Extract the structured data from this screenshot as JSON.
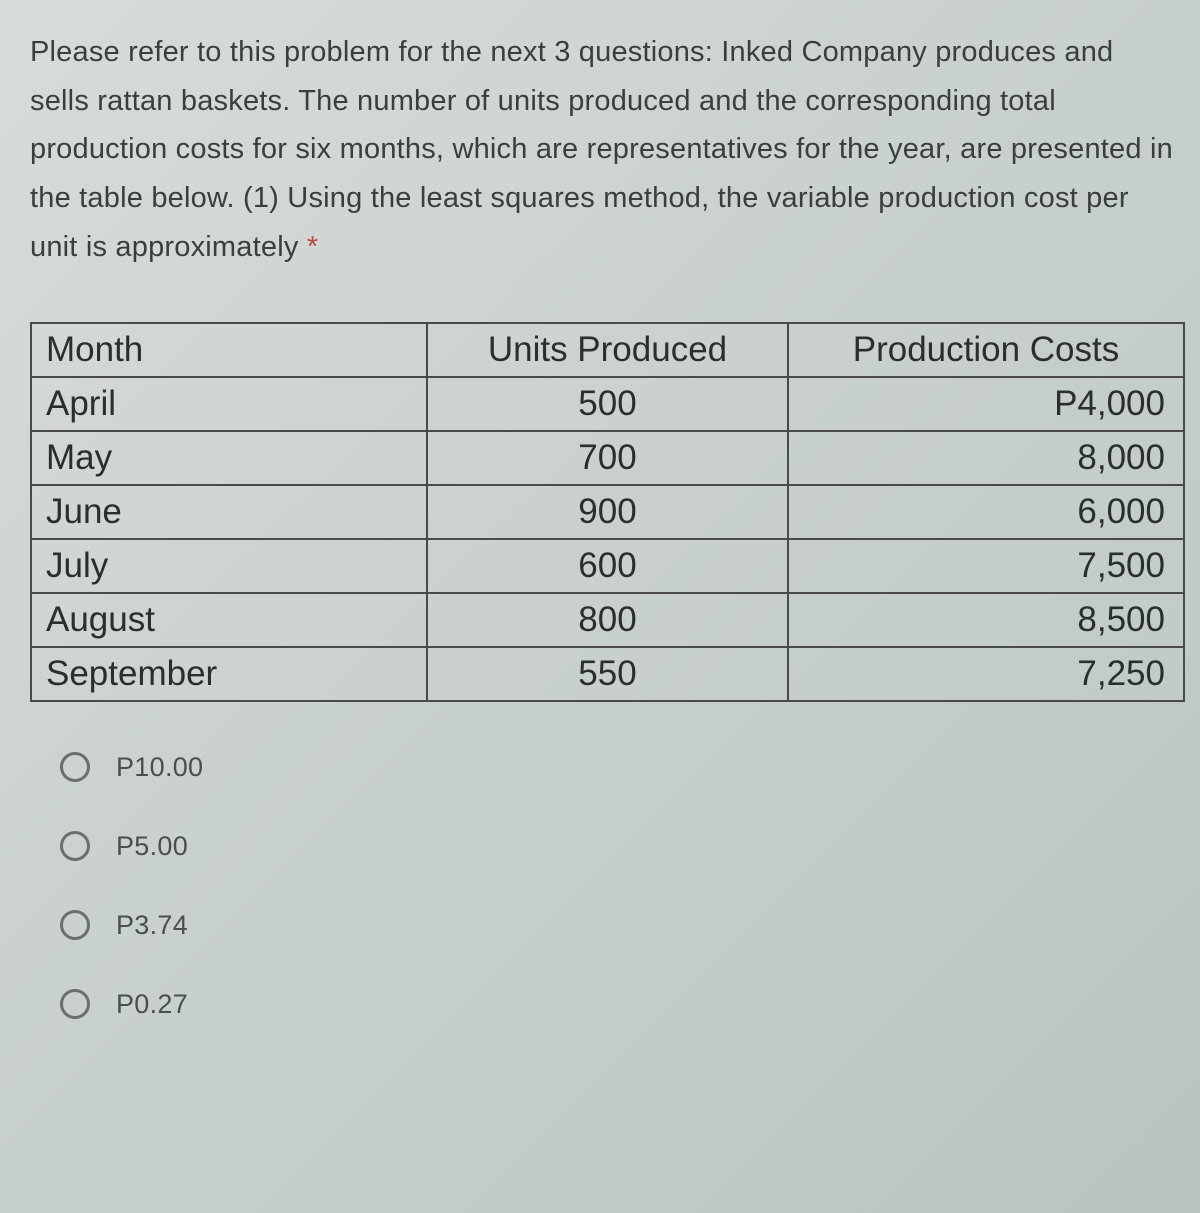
{
  "question": {
    "text": "Please refer to this problem for the next 3 questions: Inked Company produces and sells rattan baskets. The number of units produced and the corresponding total production costs for six months, which are representatives for the year, are presented in the table below. (1) Using the least squares method, the variable production cost per unit is approximately ",
    "required_marker": "*"
  },
  "table": {
    "type": "table",
    "columns": [
      "Month",
      "Units Produced",
      "Production Costs"
    ],
    "rows": [
      [
        "April",
        "500",
        "P4,000"
      ],
      [
        "May",
        "700",
        "8,000"
      ],
      [
        "June",
        "900",
        "6,000"
      ],
      [
        "July",
        "600",
        "7,500"
      ],
      [
        "August",
        "800",
        "8,500"
      ],
      [
        "September",
        "550",
        "7,250"
      ]
    ],
    "border_color": "#4a4a4a",
    "font_size": 35,
    "col_align": [
      "left",
      "center",
      "right"
    ]
  },
  "options": [
    {
      "label": "P10.00"
    },
    {
      "label": "P5.00"
    },
    {
      "label": "P3.74"
    },
    {
      "label": "P0.27"
    }
  ],
  "styling": {
    "background_gradient": [
      "#d8dcd8",
      "#c8d0cc",
      "#b8c4c0"
    ],
    "text_color": "#3a3e3e",
    "question_fontsize": 29,
    "option_fontsize": 27,
    "radio_border_color": "#6a6e6e",
    "asterisk_color": "#b54848"
  }
}
